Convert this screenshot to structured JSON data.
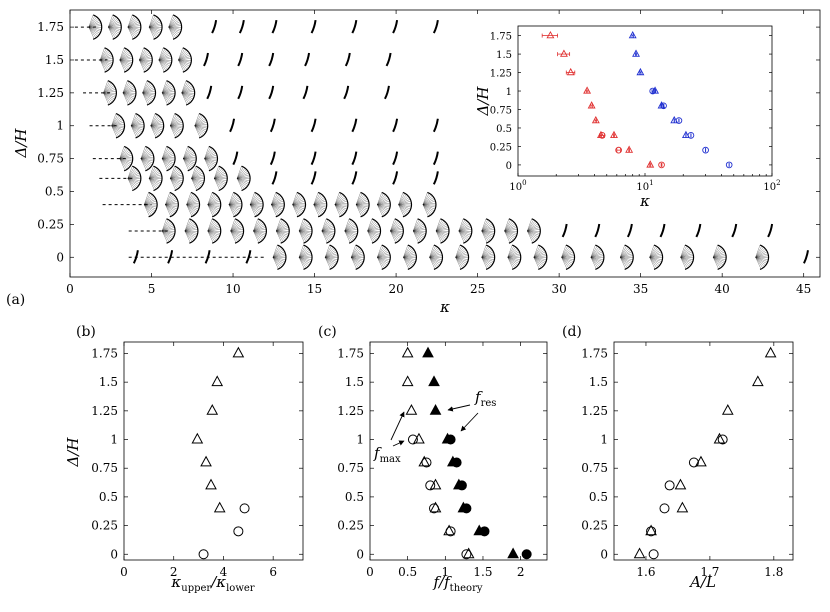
{
  "figure": {
    "panel_tags": [
      "(a)",
      "(b)",
      "(c)",
      "(d)"
    ],
    "colors": {
      "red": "#e03030",
      "blue": "#2030d0",
      "ink": "#000000"
    }
  },
  "chart_data": [
    {
      "id": "a",
      "type": "scatter",
      "title": "",
      "xlabel": "κ",
      "ylabel": "Δ/H",
      "xlim": [
        0,
        46
      ],
      "ylim": [
        -0.15,
        1.88
      ],
      "xticks": [
        0,
        5,
        10,
        15,
        20,
        25,
        30,
        35,
        40,
        45
      ],
      "yticks": [
        0,
        0.25,
        0.5,
        0.75,
        1,
        1.25,
        1.5,
        1.75
      ],
      "ytick_labels": [
        "0",
        "0.25",
        "0.5",
        "0.75",
        "1",
        "1.25",
        "1.5",
        "1.75"
      ],
      "description_series": [
        {
          "name": "flapping envelopes",
          "rows": [
            {
              "y": 1.75,
              "kappa": [
                1.7,
                2.9,
                4.1,
                5.4,
                6.6,
                8.9,
                10.6,
                12.6,
                15.0,
                17.5,
                20.0,
                22.5
              ]
            },
            {
              "y": 1.5,
              "kappa": [
                2.4,
                3.6,
                4.8,
                6.0,
                7.2,
                8.4,
                10.5,
                12.4,
                14.6,
                17.1,
                19.6
              ]
            },
            {
              "y": 1.25,
              "kappa": [
                2.6,
                3.8,
                5.0,
                6.2,
                7.4,
                8.6,
                10.5,
                12.4,
                14.5,
                17.0,
                19.5
              ]
            },
            {
              "y": 1,
              "kappa": [
                3.1,
                4.3,
                5.5,
                6.7,
                8.2,
                10.0,
                12.5,
                15.0,
                17.5,
                20.0,
                22.5
              ]
            },
            {
              "y": 0.75,
              "kappa": [
                3.6,
                4.9,
                6.2,
                7.5,
                8.8,
                10.2,
                12.5,
                15.0,
                17.5,
                20.0,
                22.5
              ]
            },
            {
              "y": 0.6,
              "kappa": [
                4.1,
                5.4,
                6.7,
                8.0,
                9.4,
                10.8,
                12.6,
                15.0,
                17.5,
                20.0,
                22.5
              ]
            },
            {
              "y": 0.4,
              "kappa": [
                5.1,
                6.4,
                7.7,
                9.0,
                10.3,
                11.6,
                12.9,
                14.2,
                15.5,
                16.8,
                18.1,
                19.4,
                20.7,
                22.2
              ]
            },
            {
              "y": 0.2,
              "kappa": [
                6.2,
                7.6,
                9.0,
                10.4,
                11.8,
                13.2,
                14.6,
                16.0,
                17.4,
                18.8,
                20.2,
                21.6,
                23.0,
                24.4,
                25.8,
                27.2,
                28.6,
                30.4,
                32.4,
                34.4,
                36.4,
                38.6,
                40.8,
                43.0
              ]
            },
            {
              "y": 0,
              "kappa": [
                4.1,
                6.2,
                8.5,
                11.0,
                13.0,
                14.6,
                16.2,
                17.8,
                19.4,
                21.0,
                22.6,
                24.2,
                25.8,
                27.4,
                29.0,
                30.7,
                32.5,
                34.3,
                36.1,
                38.0,
                40.0,
                42.6,
                45.2
              ]
            }
          ]
        }
      ]
    },
    {
      "id": "a-inset",
      "type": "scatter",
      "xlabel": "κ",
      "ylabel": "Δ/H",
      "xscale": "log",
      "xlim": [
        1,
        100
      ],
      "ylim": [
        -0.15,
        1.88
      ],
      "xtick_labels": [
        "10^0",
        "10^1",
        "10^2"
      ],
      "yticks": [
        0,
        0.25,
        0.5,
        0.75,
        1,
        1.25,
        1.5,
        1.75
      ],
      "ytick_labels": [
        "0",
        "0.25",
        "0.5",
        "0.75",
        "1",
        "1.25",
        "1.5",
        "1.75"
      ],
      "series": [
        {
          "name": "lower",
          "color": "red",
          "points": [
            {
              "x": 1.8,
              "y": 1.75,
              "m": "tri",
              "err": 0.25
            },
            {
              "x": 2.3,
              "y": 1.5,
              "m": "tri",
              "err": 0.25
            },
            {
              "x": 2.6,
              "y": 1.25,
              "m": "tri",
              "err": 0.2
            },
            {
              "x": 3.5,
              "y": 1.0,
              "m": "tri",
              "err": 0.05
            },
            {
              "x": 3.8,
              "y": 0.8,
              "m": "tri",
              "err": 0.05
            },
            {
              "x": 4.1,
              "y": 0.6,
              "m": "tri",
              "err": 0.05
            },
            {
              "x": 4.5,
              "y": 0.4,
              "m": "tri",
              "err": 0.05
            },
            {
              "x": 4.6,
              "y": 0.4,
              "m": "circ",
              "err": 0.2
            },
            {
              "x": 5.7,
              "y": 0.4,
              "m": "tri",
              "err": 0.05
            },
            {
              "x": 6.2,
              "y": 0.2,
              "m": "circ",
              "err": 0.2
            },
            {
              "x": 7.5,
              "y": 0.2,
              "m": "tri",
              "err": 0.05
            },
            {
              "x": 11.0,
              "y": 0.0,
              "m": "tri",
              "err": 0.1
            },
            {
              "x": 13.5,
              "y": 0.0,
              "m": "circ",
              "err": 0.1
            }
          ]
        },
        {
          "name": "upper",
          "color": "blue",
          "points": [
            {
              "x": 8.0,
              "y": 1.75,
              "m": "tri",
              "err": 0.1
            },
            {
              "x": 8.5,
              "y": 1.5,
              "m": "tri",
              "err": 0.1
            },
            {
              "x": 9.2,
              "y": 1.25,
              "m": "tri",
              "err": 0.1
            },
            {
              "x": 11.5,
              "y": 1.0,
              "m": "circ",
              "err": 0.15
            },
            {
              "x": 12.0,
              "y": 1.0,
              "m": "tri",
              "err": 0.15
            },
            {
              "x": 13.5,
              "y": 0.8,
              "m": "tri",
              "err": 0.1
            },
            {
              "x": 14.0,
              "y": 0.8,
              "m": "circ",
              "err": 0.1
            },
            {
              "x": 17.0,
              "y": 0.6,
              "m": "tri",
              "err": 0.05
            },
            {
              "x": 18.5,
              "y": 0.6,
              "m": "circ",
              "err": 0.05
            },
            {
              "x": 21.0,
              "y": 0.4,
              "m": "tri",
              "err": 0.05
            },
            {
              "x": 23.0,
              "y": 0.4,
              "m": "circ",
              "err": 0.05
            },
            {
              "x": 30.0,
              "y": 0.2,
              "m": "circ",
              "err": 0.05
            },
            {
              "x": 46.0,
              "y": 0.0,
              "m": "circ",
              "err": 0.05
            }
          ]
        }
      ]
    },
    {
      "id": "b",
      "type": "scatter",
      "xlabel": "κupper/κlower",
      "ylabel": "Δ/H",
      "xlim": [
        0,
        7.2
      ],
      "ylim": [
        -0.05,
        1.85
      ],
      "xticks": [
        0,
        2,
        4,
        6
      ],
      "yticks": [
        0,
        0.25,
        0.5,
        0.75,
        1,
        1.25,
        1.5,
        1.75
      ],
      "ytick_labels": [
        "0",
        "0.25",
        "0.5",
        "0.75",
        "1",
        "1.25",
        "1.5",
        "1.75"
      ],
      "series": [
        {
          "name": "triangles",
          "marker": "tri-open",
          "points": [
            {
              "x": 4.6,
              "y": 1.75
            },
            {
              "x": 3.75,
              "y": 1.5
            },
            {
              "x": 3.55,
              "y": 1.25
            },
            {
              "x": 2.95,
              "y": 1.0
            },
            {
              "x": 3.3,
              "y": 0.8
            },
            {
              "x": 3.5,
              "y": 0.6
            },
            {
              "x": 3.85,
              "y": 0.4
            }
          ]
        },
        {
          "name": "circles",
          "marker": "circ-open",
          "points": [
            {
              "x": 4.85,
              "y": 0.4
            },
            {
              "x": 4.6,
              "y": 0.2
            },
            {
              "x": 3.2,
              "y": 0.0
            }
          ]
        }
      ]
    },
    {
      "id": "c",
      "type": "scatter",
      "xlabel": "f/ftheory",
      "ylabel": "",
      "xlim": [
        0,
        2.35
      ],
      "ylim": [
        -0.05,
        1.85
      ],
      "xticks": [
        0,
        0.5,
        1,
        1.5,
        2
      ],
      "yticks": [
        0,
        0.25,
        0.5,
        0.75,
        1,
        1.25,
        1.5,
        1.75
      ],
      "ytick_labels": [
        "0",
        "0.25",
        "0.5",
        "0.75",
        "1",
        "1.25",
        "1.5",
        "1.75"
      ],
      "annotations": {
        "fmax_base": "f",
        "fmax_sub": "max",
        "fres_base": "f",
        "fres_sub": "res"
      },
      "series": [
        {
          "name": "f_max",
          "markers": "open",
          "points": [
            {
              "x": 0.5,
              "y": 1.75,
              "m": "tri"
            },
            {
              "x": 0.5,
              "y": 1.5,
              "m": "tri"
            },
            {
              "x": 0.55,
              "y": 1.25,
              "m": "tri"
            },
            {
              "x": 0.57,
              "y": 1.0,
              "m": "circ"
            },
            {
              "x": 0.65,
              "y": 1.0,
              "m": "tri"
            },
            {
              "x": 0.72,
              "y": 0.8,
              "m": "tri"
            },
            {
              "x": 0.75,
              "y": 0.8,
              "m": "circ"
            },
            {
              "x": 0.8,
              "y": 0.6,
              "m": "circ"
            },
            {
              "x": 0.87,
              "y": 0.6,
              "m": "tri"
            },
            {
              "x": 0.85,
              "y": 0.4,
              "m": "circ"
            },
            {
              "x": 0.87,
              "y": 0.4,
              "m": "tri"
            },
            {
              "x": 1.05,
              "y": 0.2,
              "m": "tri"
            },
            {
              "x": 1.07,
              "y": 0.2,
              "m": "circ"
            },
            {
              "x": 1.28,
              "y": 0.0,
              "m": "circ"
            },
            {
              "x": 1.31,
              "y": 0.0,
              "m": "tri"
            }
          ]
        },
        {
          "name": "f_res",
          "markers": "filled",
          "points": [
            {
              "x": 0.77,
              "y": 1.75,
              "m": "tri"
            },
            {
              "x": 0.85,
              "y": 1.5,
              "m": "tri"
            },
            {
              "x": 0.87,
              "y": 1.25,
              "m": "tri"
            },
            {
              "x": 1.03,
              "y": 1.0,
              "m": "tri"
            },
            {
              "x": 1.07,
              "y": 1.0,
              "m": "circ"
            },
            {
              "x": 1.1,
              "y": 0.8,
              "m": "tri"
            },
            {
              "x": 1.15,
              "y": 0.8,
              "m": "circ"
            },
            {
              "x": 1.18,
              "y": 0.6,
              "m": "tri"
            },
            {
              "x": 1.22,
              "y": 0.6,
              "m": "circ"
            },
            {
              "x": 1.24,
              "y": 0.4,
              "m": "tri"
            },
            {
              "x": 1.28,
              "y": 0.4,
              "m": "circ"
            },
            {
              "x": 1.45,
              "y": 0.2,
              "m": "tri"
            },
            {
              "x": 1.52,
              "y": 0.2,
              "m": "circ"
            },
            {
              "x": 1.9,
              "y": 0.0,
              "m": "tri"
            },
            {
              "x": 2.08,
              "y": 0.0,
              "m": "circ"
            }
          ]
        }
      ]
    },
    {
      "id": "d",
      "type": "scatter",
      "xlabel": "A/L",
      "ylabel": "",
      "xlim": [
        1.55,
        1.83
      ],
      "ylim": [
        -0.05,
        1.85
      ],
      "xticks": [
        1.6,
        1.7,
        1.8
      ],
      "yticks": [
        0,
        0.25,
        0.5,
        0.75,
        1,
        1.25,
        1.5,
        1.75
      ],
      "ytick_labels": [
        "0",
        "0.25",
        "0.5",
        "0.75",
        "1",
        "1.25",
        "1.5",
        "1.75"
      ],
      "series": [
        {
          "name": "triangles",
          "marker": "tri-open",
          "points": [
            {
              "x": 1.795,
              "y": 1.75
            },
            {
              "x": 1.775,
              "y": 1.5
            },
            {
              "x": 1.728,
              "y": 1.25
            },
            {
              "x": 1.715,
              "y": 1.0
            },
            {
              "x": 1.686,
              "y": 0.8
            },
            {
              "x": 1.654,
              "y": 0.6
            },
            {
              "x": 1.657,
              "y": 0.4
            },
            {
              "x": 1.608,
              "y": 0.2
            },
            {
              "x": 1.59,
              "y": 0.0
            }
          ]
        },
        {
          "name": "circles",
          "marker": "circ-open",
          "points": [
            {
              "x": 1.72,
              "y": 1.0
            },
            {
              "x": 1.675,
              "y": 0.8
            },
            {
              "x": 1.637,
              "y": 0.6
            },
            {
              "x": 1.629,
              "y": 0.4
            },
            {
              "x": 1.608,
              "y": 0.2
            },
            {
              "x": 1.612,
              "y": 0.0
            }
          ]
        }
      ]
    }
  ]
}
